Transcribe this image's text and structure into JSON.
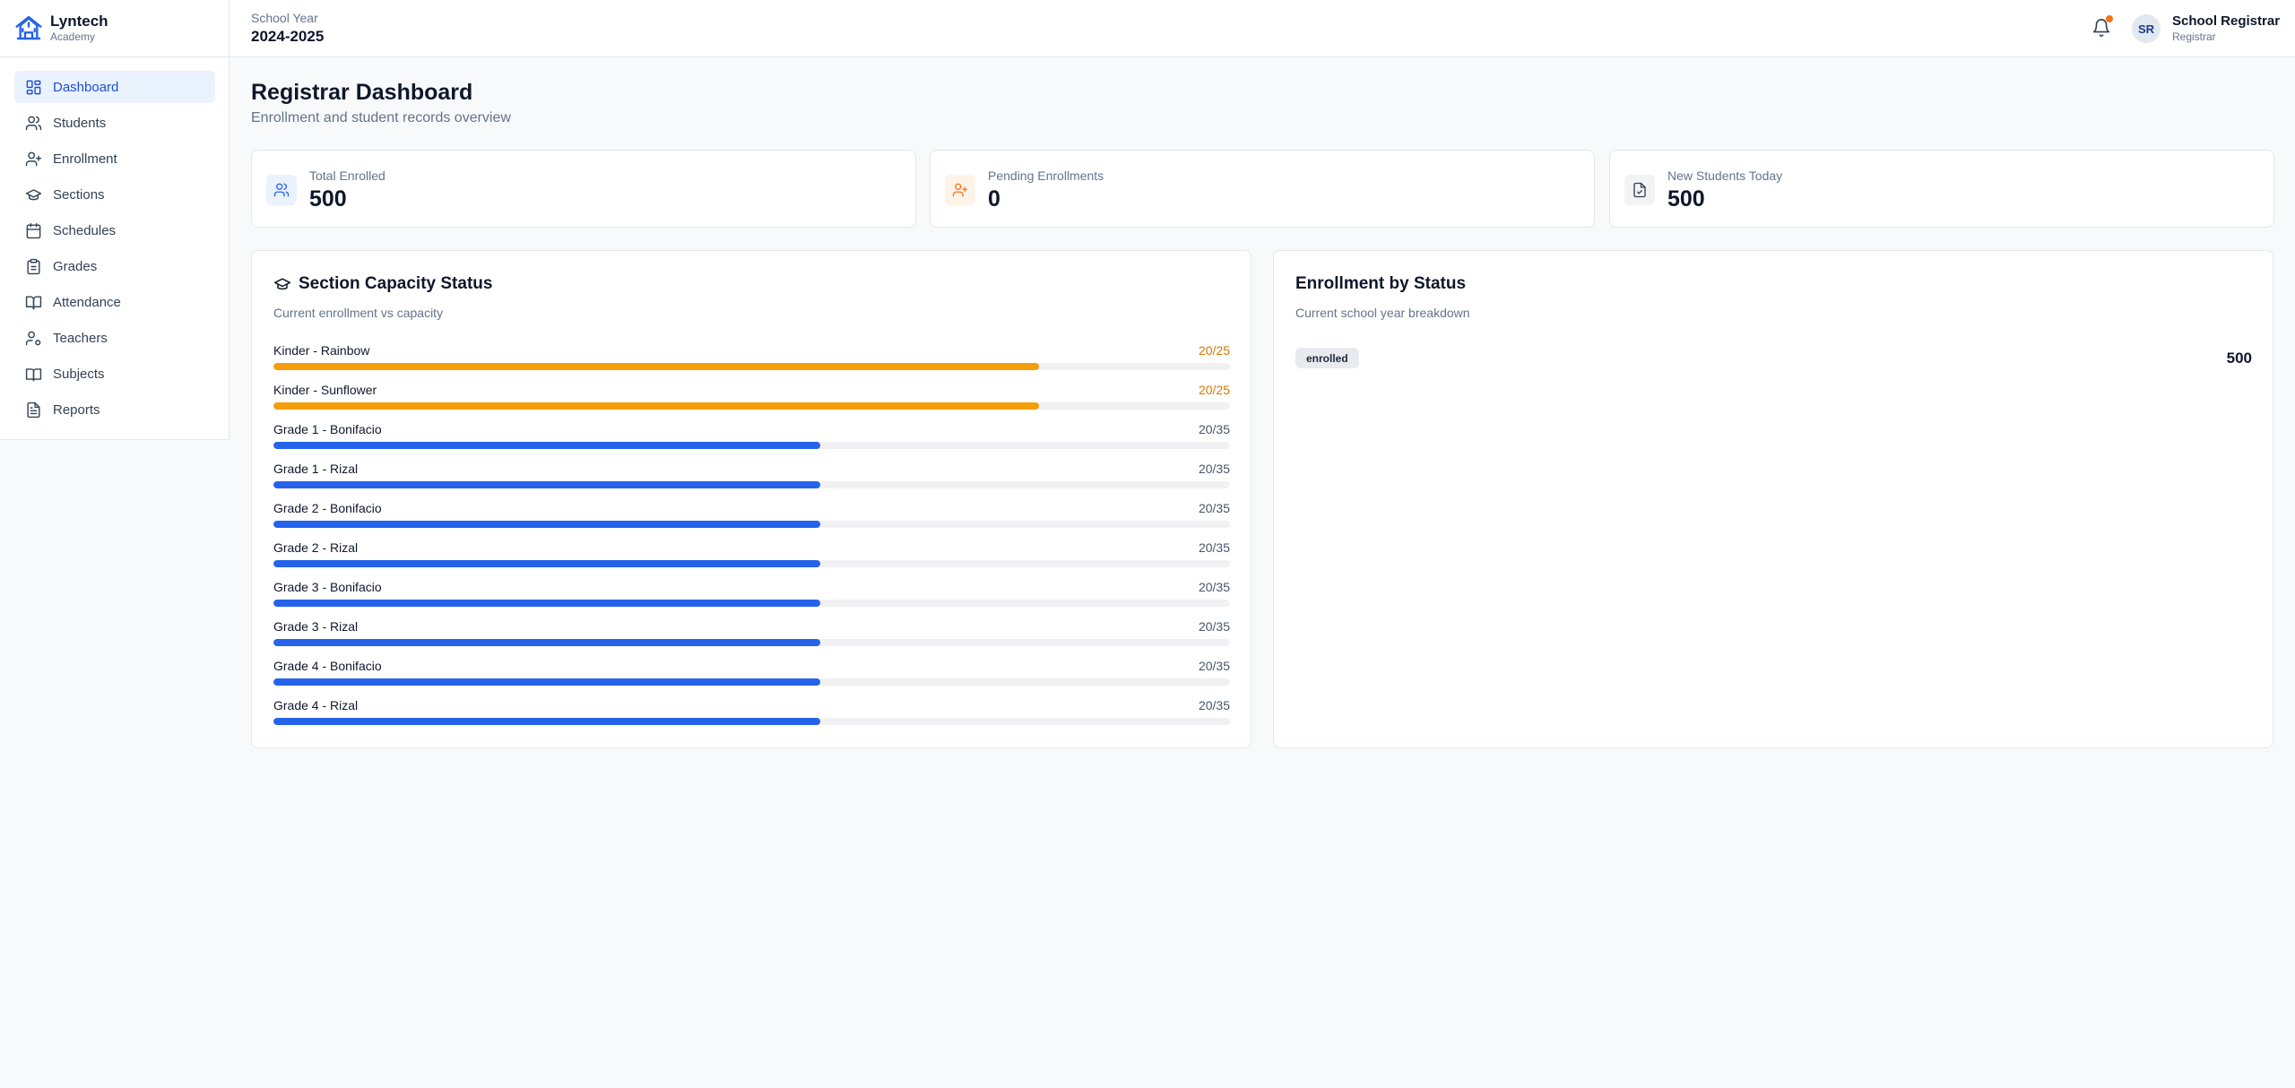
{
  "brand": {
    "name": "Lyntech",
    "subtitle": "Academy"
  },
  "sidebar": {
    "items": [
      {
        "label": "Dashboard",
        "icon": "dashboard-icon",
        "active": true
      },
      {
        "label": "Students",
        "icon": "users-icon"
      },
      {
        "label": "Enrollment",
        "icon": "user-plus-icon"
      },
      {
        "label": "Sections",
        "icon": "graduation-cap-icon"
      },
      {
        "label": "Schedules",
        "icon": "calendar-icon"
      },
      {
        "label": "Grades",
        "icon": "clipboard-icon"
      },
      {
        "label": "Attendance",
        "icon": "book-open-icon"
      },
      {
        "label": "Teachers",
        "icon": "user-cog-icon"
      },
      {
        "label": "Subjects",
        "icon": "book-icon"
      },
      {
        "label": "Reports",
        "icon": "file-text-icon"
      }
    ]
  },
  "header": {
    "school_year_label": "School Year",
    "school_year": "2024-2025",
    "user": {
      "initials": "SR",
      "name": "School Registrar",
      "role": "Registrar"
    }
  },
  "page": {
    "title": "Registrar Dashboard",
    "subtitle": "Enrollment and student records overview"
  },
  "stats": [
    {
      "label": "Total Enrolled",
      "value": "500",
      "icon": "users-icon",
      "icon_color": "#2563eb",
      "icon_bg": "#eaf2fd"
    },
    {
      "label": "Pending Enrollments",
      "value": "0",
      "icon": "user-plus-icon",
      "icon_color": "#f97316",
      "icon_bg": "#fff3e8"
    },
    {
      "label": "New Students Today",
      "value": "500",
      "icon": "file-check-icon",
      "icon_color": "#334155",
      "icon_bg": "#f1f3f5"
    }
  ],
  "capacity": {
    "title": "Section Capacity Status",
    "subtitle": "Current enrollment vs capacity",
    "sections": [
      {
        "name": "Kinder - Rainbow",
        "enrolled": 20,
        "capacity": 25,
        "count_text": "20/25",
        "warn": true
      },
      {
        "name": "Kinder - Sunflower",
        "enrolled": 20,
        "capacity": 25,
        "count_text": "20/25",
        "warn": true
      },
      {
        "name": "Grade 1 - Bonifacio",
        "enrolled": 20,
        "capacity": 35,
        "count_text": "20/35",
        "warn": false
      },
      {
        "name": "Grade 1 - Rizal",
        "enrolled": 20,
        "capacity": 35,
        "count_text": "20/35",
        "warn": false
      },
      {
        "name": "Grade 2 - Bonifacio",
        "enrolled": 20,
        "capacity": 35,
        "count_text": "20/35",
        "warn": false
      },
      {
        "name": "Grade 2 - Rizal",
        "enrolled": 20,
        "capacity": 35,
        "count_text": "20/35",
        "warn": false
      },
      {
        "name": "Grade 3 - Bonifacio",
        "enrolled": 20,
        "capacity": 35,
        "count_text": "20/35",
        "warn": false
      },
      {
        "name": "Grade 3 - Rizal",
        "enrolled": 20,
        "capacity": 35,
        "count_text": "20/35",
        "warn": false
      },
      {
        "name": "Grade 4 - Bonifacio",
        "enrolled": 20,
        "capacity": 35,
        "count_text": "20/35",
        "warn": false
      },
      {
        "name": "Grade 4 - Rizal",
        "enrolled": 20,
        "capacity": 35,
        "count_text": "20/35",
        "warn": false
      }
    ]
  },
  "status_panel": {
    "title": "Enrollment by Status",
    "subtitle": "Current school year breakdown",
    "rows": [
      {
        "status": "enrolled",
        "count": "500"
      }
    ]
  },
  "colors": {
    "accent": "#2563eb",
    "warning": "#f59e0b",
    "notification_dot": "#f97316"
  }
}
